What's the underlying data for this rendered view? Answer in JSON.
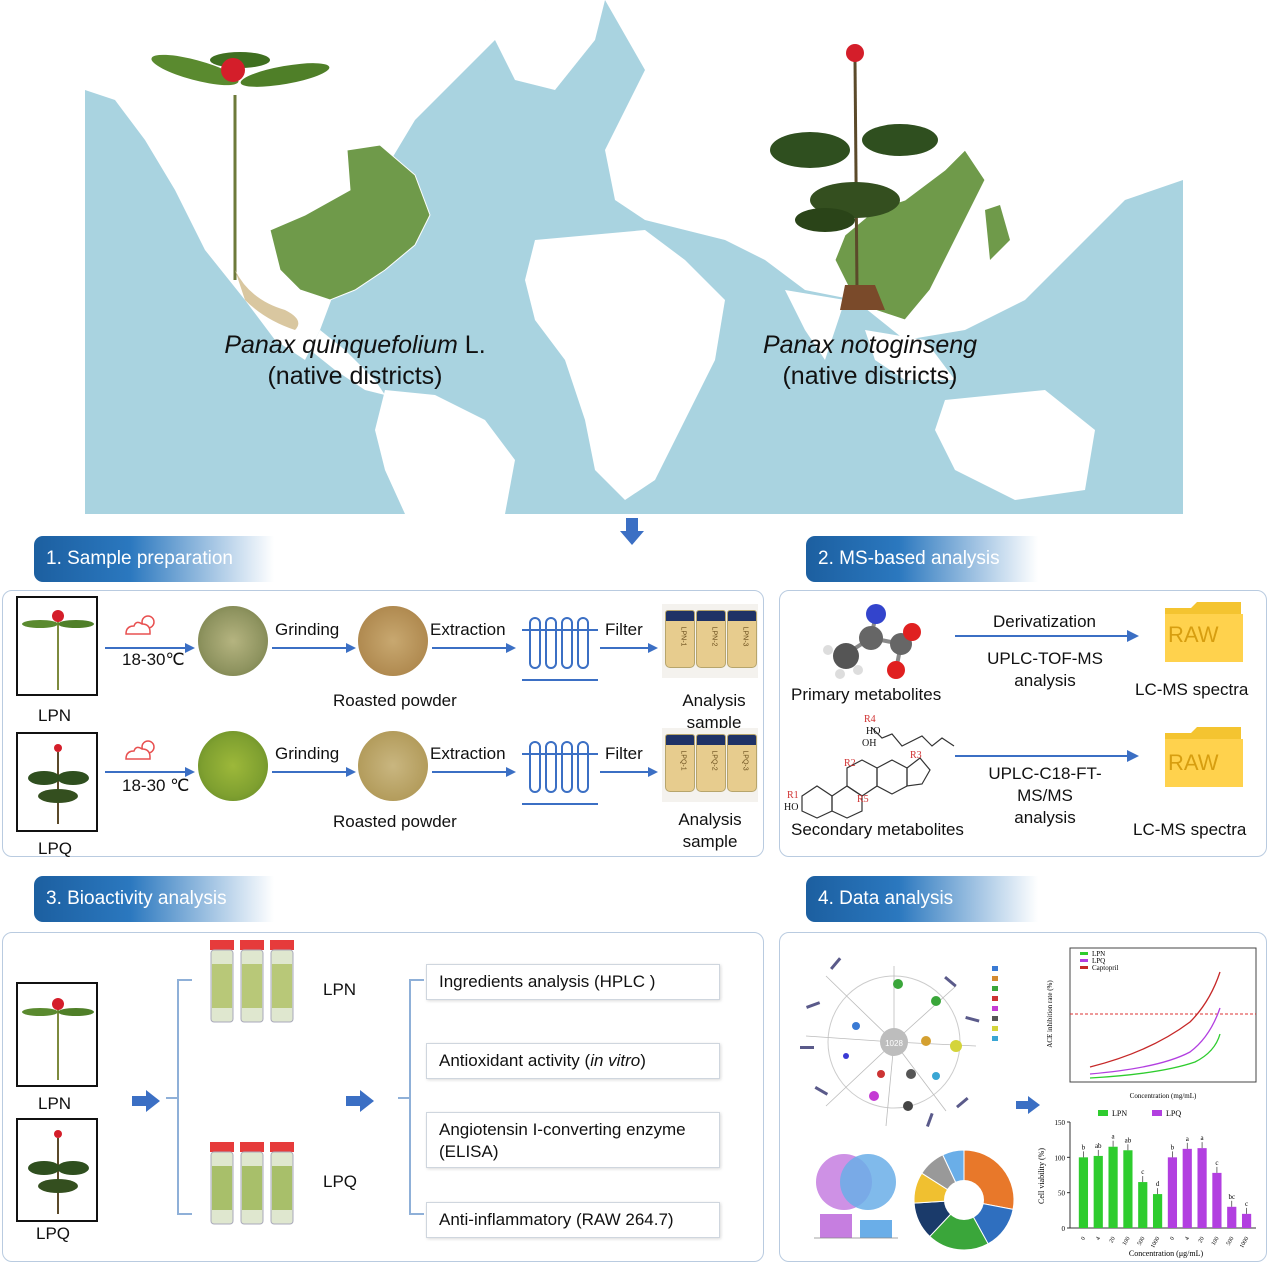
{
  "map": {
    "left_label": {
      "species": "Panax quinquefolium",
      "suffix": " L.",
      "sub": "(native districts)"
    },
    "right_label": {
      "species": "Panax notoginseng",
      "sub": "(native districts)"
    }
  },
  "section1": {
    "title": "1. Sample preparation",
    "rows": [
      {
        "sample": "LPN",
        "temp": "18-30℃",
        "grinding": "Grinding",
        "powder": "Roasted powder",
        "extraction": "Extraction",
        "filter": "Filter",
        "result": "Analysis sample",
        "vial_labels": [
          "LPN-1",
          "LPN-2",
          "LPN-3"
        ]
      },
      {
        "sample": "LPQ",
        "temp": "18-30 ℃",
        "grinding": "Grinding",
        "powder": "Roasted powder",
        "extraction": "Extraction",
        "filter": "Filter",
        "result": "Analysis sample",
        "vial_labels": [
          "LPQ-1",
          "LPQ-2",
          "LPQ-3"
        ]
      }
    ]
  },
  "section2": {
    "title": "2. MS-based analysis",
    "primary": {
      "label": "Primary metabolites",
      "step": "Derivatization",
      "method_l1": "UPLC-TOF-MS",
      "method_l2": "analysis",
      "folder": "RAW",
      "output": "LC-MS spectra"
    },
    "secondary": {
      "label": "Secondary metabolites",
      "method_l1": "UPLC-C18-FT-",
      "method_l2": "MS/MS",
      "method_l3": "analysis",
      "folder": "RAW",
      "output": "LC-MS spectra"
    }
  },
  "section3": {
    "title": "3. Bioactivity analysis",
    "samples": [
      "LPN",
      "LPQ"
    ],
    "assays": [
      {
        "text": "Ingredients analysis (HPLC )"
      },
      {
        "pre": "Antioxidant activity (",
        "em": "in vitro",
        "post": ")"
      },
      {
        "line1": "Angiotensin I-converting enzyme",
        "line2": "(ELISA)"
      },
      {
        "text": "Anti-inflammatory (RAW 264.7)"
      }
    ]
  },
  "section4": {
    "title": "4. Data analysis",
    "center_count": "1028",
    "line_chart": {
      "legend": [
        "LPN",
        "LPQ",
        "Captopril"
      ],
      "xlabel": "Concentration (mg/mL)",
      "ylabel": "ACE inhibition rate (%)"
    },
    "bar_chart": {
      "legend": [
        "LPN",
        "LPQ"
      ],
      "xlabel": "Concentration (μg/mL)",
      "ylabel": "Cell viability (%)",
      "categories": [
        "0",
        "4",
        "20",
        "100",
        "500",
        "1000"
      ],
      "ylim": [
        0,
        150
      ],
      "yticks": [
        "0",
        "50",
        "100",
        "150"
      ],
      "series": [
        {
          "name": "LPN",
          "values": [
            100,
            102,
            115,
            110,
            65,
            48
          ],
          "letters": [
            "b",
            "ab",
            "a",
            "ab",
            "c",
            "d"
          ],
          "color": "#2ecc2e"
        },
        {
          "name": "LPQ",
          "values": [
            100,
            112,
            113,
            78,
            30,
            20
          ],
          "letters": [
            "b",
            "a",
            "a",
            "c",
            "bc",
            "c"
          ],
          "color": "#b23fe0"
        }
      ]
    }
  },
  "colors": {
    "ocean": "#a9d3e0",
    "land": "#ffffff",
    "native": "#6f9a4a",
    "banner": "#1f65a8",
    "arrow": "#3b6fc4"
  }
}
